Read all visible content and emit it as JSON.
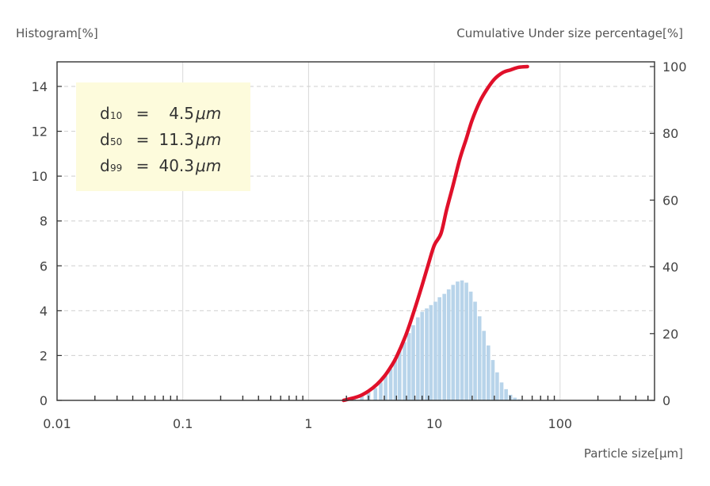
{
  "chart_data": {
    "type": "bar+line",
    "left_axis_title": "Histogram[%]",
    "right_axis_title": "Cumulative Under size percentage[%]",
    "x_axis_title": "Particle size[μm]",
    "x_scale": "log",
    "x_range": [
      0.01,
      500
    ],
    "x_tick_labels": [
      "0.01",
      "0.1",
      "1",
      "10",
      "100"
    ],
    "x_tick_values": [
      0.01,
      0.1,
      1,
      10,
      100
    ],
    "y_left_range": [
      0,
      15
    ],
    "y_left_ticks": [
      "0",
      "2",
      "4",
      "6",
      "8",
      "10",
      "12",
      "14"
    ],
    "y_right_range": [
      0,
      100
    ],
    "y_right_ticks": [
      "0",
      "20",
      "40",
      "60",
      "80",
      "100"
    ],
    "grid": "vertical solid at decades, horizontal dashed",
    "histogram": {
      "color": "#b8d4ea",
      "x": [
        2.0,
        2.3,
        2.65,
        3.0,
        3.4,
        3.75,
        4.1,
        4.5,
        4.9,
        5.3,
        5.8,
        6.3,
        6.8,
        7.4,
        8.0,
        8.7,
        9.4,
        10.2,
        11.0,
        12.0,
        13.0,
        14.1,
        15.3,
        16.6,
        18.0,
        19.5,
        21.1,
        22.9,
        24.8,
        26.9,
        29.2,
        31.6,
        34.3,
        37.2,
        40.3,
        43.7,
        47.4
      ],
      "values": [
        0.05,
        0.1,
        0.2,
        0.35,
        0.55,
        0.8,
        1.1,
        1.4,
        1.8,
        2.2,
        2.6,
        3.0,
        3.35,
        3.7,
        3.95,
        4.1,
        4.25,
        4.4,
        4.6,
        4.75,
        4.95,
        5.15,
        5.3,
        5.35,
        5.25,
        4.85,
        4.4,
        3.75,
        3.1,
        2.45,
        1.8,
        1.25,
        0.8,
        0.5,
        0.25,
        0.12,
        0.05
      ]
    },
    "cumulative": {
      "color": "#e0102a",
      "x": [
        1.9,
        2.5,
        3.0,
        3.5,
        4.0,
        4.5,
        5.0,
        6.0,
        7.0,
        8.0,
        9.0,
        10.0,
        11.3,
        12.5,
        14.0,
        16.0,
        18.0,
        20.0,
        23.0,
        26.0,
        30.0,
        35.0,
        40.3,
        47.0,
        55.0
      ],
      "values": [
        0,
        1.2,
        2.8,
        4.8,
        7.2,
        10.0,
        13.0,
        20.0,
        27.5,
        34.5,
        41.0,
        46.5,
        50.0,
        57.0,
        64.0,
        72.5,
        78.5,
        84.0,
        89.5,
        93.0,
        96.2,
        98.2,
        99.0,
        99.8,
        100
      ]
    },
    "annotation": {
      "rows": [
        {
          "sym": "d",
          "sub": "10",
          "eq": "=",
          "val": "4.5",
          "unit": "μm"
        },
        {
          "sym": "d",
          "sub": "50",
          "eq": "=",
          "val": "11.3",
          "unit": "μm"
        },
        {
          "sym": "d",
          "sub": "99",
          "eq": "=",
          "val": "40.3",
          "unit": "μm"
        }
      ],
      "background": "#fdfbdc"
    }
  }
}
